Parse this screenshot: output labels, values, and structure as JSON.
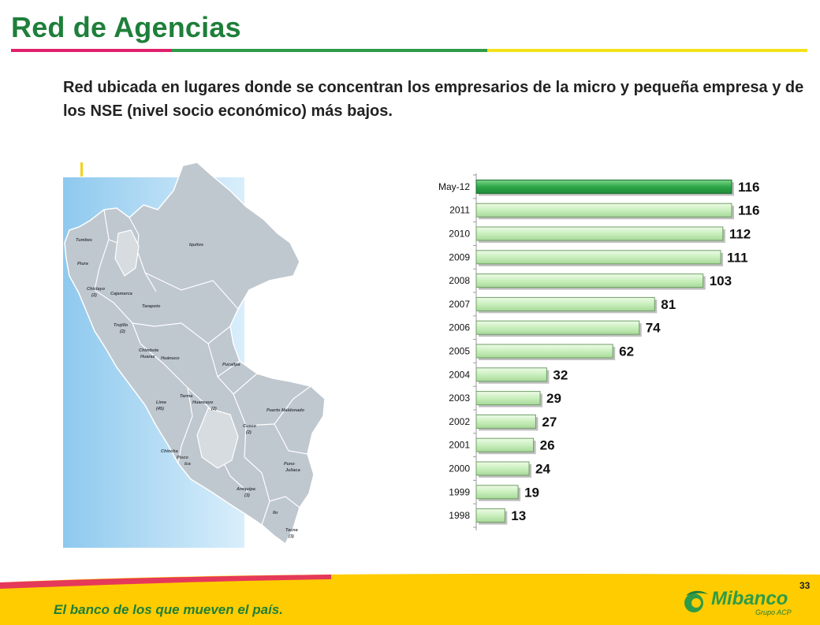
{
  "slide": {
    "title": "Red de Agencias",
    "subtitle": "Red ubicada en lugares donde se concentran los empresarios de la micro y pequeña empresa y de los NSE (nivel socio económico) más bajos.",
    "page_number": "33"
  },
  "map": {
    "labels": [
      "Tumbes",
      "Piura",
      "Chiclayo",
      "(2)",
      "Cajamarca",
      "Trujillo",
      "(2)",
      "Tarapoto",
      "Iquitos",
      "Chimbote",
      "Huaraz",
      "Huánuco",
      "Pucallpa",
      "Lima",
      "(45)",
      "Tarma",
      "Huancayo",
      "(2)",
      "Puerto Maldonado",
      "Cusco",
      "(2)",
      "Chincha",
      "Pisco",
      "Ica",
      "Puno",
      "Juliaca",
      "Arequipa",
      "(3)",
      "Ilo",
      "Tacna",
      "(3)"
    ]
  },
  "chart_data": {
    "type": "bar",
    "orientation": "horizontal",
    "categories": [
      "May-12",
      "2011",
      "2010",
      "2009",
      "2008",
      "2007",
      "2006",
      "2005",
      "2004",
      "2003",
      "2002",
      "2001",
      "2000",
      "1999",
      "1998"
    ],
    "values": [
      116,
      116,
      112,
      111,
      103,
      81,
      74,
      62,
      32,
      29,
      27,
      26,
      24,
      19,
      13
    ],
    "highlight_index": 0,
    "xlim": [
      0,
      116
    ],
    "grid": false,
    "legend": "none"
  },
  "footer": {
    "slogan": "El banco de los que mueven el país.",
    "logo_name": "Mibanco",
    "logo_group": "Grupo ACP"
  },
  "colors": {
    "title_green": "#1e7f3a",
    "rule_magenta": "#e01f6a",
    "rule_green": "#2e9b48",
    "rule_yellow": "#f4e21a",
    "footer_yellow": "#ffcc00",
    "bar_highlight": "#2ea84a",
    "bar_normal": "#d4f2c8"
  }
}
